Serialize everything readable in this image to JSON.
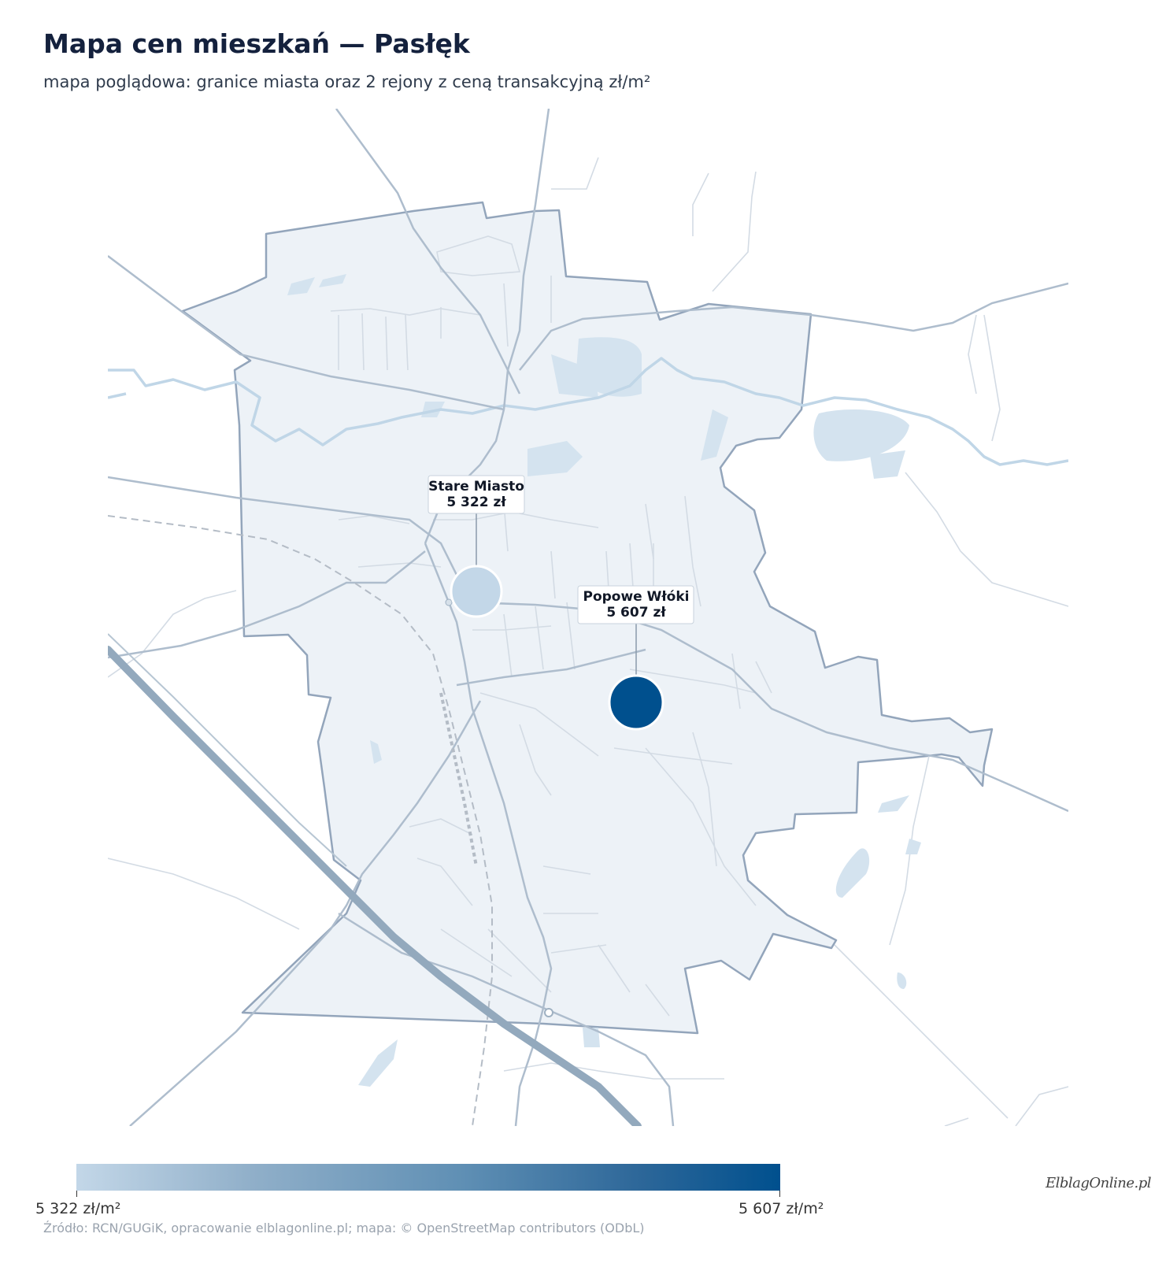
{
  "header": {
    "title": "Mapa cen mieszkań — Pasłęk",
    "subtitle": "mapa poglądowa: granice miasta oraz 2 rejony z ceną transakcyjną zł/m²"
  },
  "regions": [
    {
      "name": "Stare Miasto",
      "price": "5 322 zł",
      "value": 5322,
      "color": "#c3d7e8"
    },
    {
      "name": "Popowe Włóki",
      "price": "5 607 zł",
      "value": 5607,
      "color": "#00508e"
    }
  ],
  "legend": {
    "min_label": "5 322 zł/m²",
    "max_label": "5 607 zł/m²",
    "min_value": 5322,
    "max_value": 5607,
    "color_low": "#c3d7e8",
    "color_high": "#00508e"
  },
  "footer": {
    "source": "Źródło: RCN/GUGiK, opracowanie elblagonline.pl; mapa: © OpenStreetMap contributors (ODbL)",
    "logo": "ElblagOnline.pl"
  }
}
